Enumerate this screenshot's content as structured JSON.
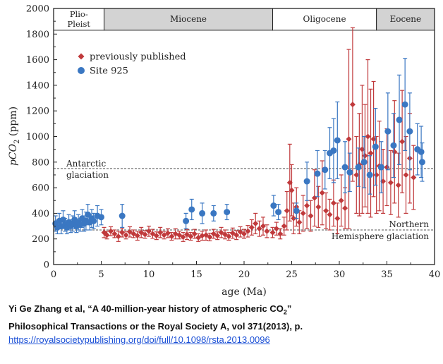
{
  "chart_data": {
    "type": "scatter",
    "xlabel": "age (Ma)",
    "ylabel_main": "pCO",
    "ylabel_sub": "2",
    "ylabel_tail": " (ppm)",
    "xlim": [
      0,
      40
    ],
    "ylim": [
      0,
      2000
    ],
    "xticks": [
      "0",
      "5",
      "10",
      "15",
      "20",
      "25",
      "30",
      "35",
      "40"
    ],
    "yticks": [
      "0",
      "200",
      "400",
      "600",
      "800",
      "1000",
      "1200",
      "1400",
      "1600",
      "1800",
      "2000"
    ],
    "epochs": [
      {
        "name": "Plio-\nPleist",
        "line1": "Plio-",
        "line2": "Pleist",
        "start": 0,
        "end": 5.3,
        "fill": "#ffffff"
      },
      {
        "name": "Miocene",
        "start": 5.3,
        "end": 23,
        "fill": "#d3d3d3"
      },
      {
        "name": "Oligocene",
        "start": 23,
        "end": 33.9,
        "fill": "#ffffff"
      },
      {
        "name": "Eocene",
        "start": 33.9,
        "end": 40,
        "fill": "#d3d3d3"
      }
    ],
    "reference_lines": [
      {
        "label_line1": "Antarctic",
        "label_line2": "glaciation",
        "y": 750
      },
      {
        "label_line1": "Northern",
        "label_line2": "Hemisphere glaciation",
        "y": 270
      }
    ],
    "legend": [
      {
        "label": "previously published",
        "marker": "diamond",
        "color": "#c0393b"
      },
      {
        "label": "Site 925",
        "marker": "circle",
        "color": "#3a77c2"
      }
    ],
    "series": [
      {
        "name": "previously published",
        "color": "#c0393b",
        "marker": "diamond",
        "points": [
          [
            5.3,
            250,
            40
          ],
          [
            5.6,
            230,
            30
          ],
          [
            6.0,
            260,
            35
          ],
          [
            6.4,
            240,
            30
          ],
          [
            6.8,
            220,
            40
          ],
          [
            7.2,
            250,
            35
          ],
          [
            7.6,
            230,
            30
          ],
          [
            8.0,
            255,
            40
          ],
          [
            8.4,
            240,
            30
          ],
          [
            8.8,
            225,
            35
          ],
          [
            9.2,
            250,
            40
          ],
          [
            9.6,
            235,
            30
          ],
          [
            10.0,
            260,
            40
          ],
          [
            10.4,
            240,
            35
          ],
          [
            10.8,
            225,
            30
          ],
          [
            11.2,
            250,
            40
          ],
          [
            11.6,
            230,
            30
          ],
          [
            12.0,
            245,
            35
          ],
          [
            12.4,
            220,
            30
          ],
          [
            12.8,
            240,
            40
          ],
          [
            13.2,
            230,
            30
          ],
          [
            13.6,
            215,
            35
          ],
          [
            14.0,
            235,
            40
          ],
          [
            14.4,
            220,
            30
          ],
          [
            14.8,
            240,
            35
          ],
          [
            15.2,
            210,
            30
          ],
          [
            15.6,
            225,
            35
          ],
          [
            16.0,
            230,
            40
          ],
          [
            16.4,
            215,
            30
          ],
          [
            16.8,
            240,
            35
          ],
          [
            17.2,
            225,
            30
          ],
          [
            17.6,
            250,
            40
          ],
          [
            18.0,
            235,
            35
          ],
          [
            18.4,
            220,
            30
          ],
          [
            18.8,
            245,
            40
          ],
          [
            19.2,
            230,
            35
          ],
          [
            19.6,
            255,
            40
          ],
          [
            20.0,
            240,
            35
          ],
          [
            20.4,
            260,
            45
          ],
          [
            20.8,
            290,
            60
          ],
          [
            21.2,
            320,
            80
          ],
          [
            21.6,
            280,
            60
          ],
          [
            22.0,
            300,
            70
          ],
          [
            22.4,
            260,
            50
          ],
          [
            23.0,
            250,
            40
          ],
          [
            23.4,
            280,
            50
          ],
          [
            23.8,
            240,
            40
          ],
          [
            24.2,
            300,
            70
          ],
          [
            24.5,
            420,
            150
          ],
          [
            24.8,
            640,
            300
          ],
          [
            25.0,
            580,
            200
          ],
          [
            25.2,
            360,
            120
          ],
          [
            25.5,
            450,
            150
          ],
          [
            25.8,
            330,
            90
          ],
          [
            26.2,
            400,
            140
          ],
          [
            26.6,
            460,
            180
          ],
          [
            27.0,
            380,
            120
          ],
          [
            27.4,
            520,
            220
          ],
          [
            27.8,
            450,
            160
          ],
          [
            28.2,
            560,
            250
          ],
          [
            28.6,
            420,
            140
          ],
          [
            29.0,
            390,
            120
          ],
          [
            29.4,
            480,
            180
          ],
          [
            29.8,
            360,
            120
          ],
          [
            30.2,
            500,
            200
          ],
          [
            30.6,
            440,
            160
          ],
          [
            31.0,
            980,
            700
          ],
          [
            31.4,
            1250,
            600
          ],
          [
            31.8,
            700,
            300
          ],
          [
            32.1,
            780,
            400
          ],
          [
            32.4,
            900,
            500
          ],
          [
            32.7,
            850,
            400
          ],
          [
            33.0,
            1000,
            600
          ],
          [
            33.3,
            870,
            500
          ],
          [
            33.6,
            980,
            450
          ],
          [
            33.9,
            700,
            300
          ],
          [
            34.2,
            770,
            350
          ],
          [
            34.6,
            650,
            250
          ],
          [
            35.0,
            760,
            300
          ],
          [
            35.4,
            640,
            250
          ],
          [
            35.8,
            880,
            400
          ],
          [
            36.2,
            620,
            250
          ],
          [
            36.6,
            960,
            400
          ],
          [
            37.0,
            700,
            300
          ],
          [
            37.4,
            830,
            350
          ],
          [
            37.8,
            680,
            250
          ]
        ]
      },
      {
        "name": "Site 925",
        "color": "#3a77c2",
        "marker": "circle",
        "points": [
          [
            0.2,
            320,
            60
          ],
          [
            0.4,
            290,
            50
          ],
          [
            0.6,
            340,
            60
          ],
          [
            0.8,
            300,
            60
          ],
          [
            1.0,
            350,
            70
          ],
          [
            1.2,
            310,
            50
          ],
          [
            1.4,
            290,
            50
          ],
          [
            1.6,
            330,
            60
          ],
          [
            1.8,
            300,
            50
          ],
          [
            2.0,
            320,
            60
          ],
          [
            2.2,
            350,
            70
          ],
          [
            2.4,
            300,
            50
          ],
          [
            2.6,
            330,
            60
          ],
          [
            2.8,
            310,
            50
          ],
          [
            3.0,
            360,
            70
          ],
          [
            3.2,
            320,
            60
          ],
          [
            3.4,
            340,
            70
          ],
          [
            3.6,
            390,
            80
          ],
          [
            3.8,
            330,
            60
          ],
          [
            4.0,
            360,
            70
          ],
          [
            4.2,
            340,
            60
          ],
          [
            4.6,
            380,
            80
          ],
          [
            5.0,
            370,
            60
          ],
          [
            7.2,
            380,
            90
          ],
          [
            13.9,
            340,
            60
          ],
          [
            14.5,
            430,
            80
          ],
          [
            15.6,
            400,
            80
          ],
          [
            16.8,
            400,
            60
          ],
          [
            18.2,
            410,
            60
          ],
          [
            23.1,
            460,
            80
          ],
          [
            23.6,
            410,
            60
          ],
          [
            25.5,
            420,
            60
          ],
          [
            26.6,
            650,
            150
          ],
          [
            27.7,
            710,
            180
          ],
          [
            28.5,
            740,
            150
          ],
          [
            29.0,
            870,
            200
          ],
          [
            29.4,
            890,
            250
          ],
          [
            29.8,
            970,
            300
          ],
          [
            30.6,
            760,
            200
          ],
          [
            31.1,
            720,
            150
          ],
          [
            32.0,
            760,
            150
          ],
          [
            32.6,
            800,
            200
          ],
          [
            33.2,
            700,
            150
          ],
          [
            33.8,
            920,
            300
          ],
          [
            34.4,
            760,
            200
          ],
          [
            35.1,
            1040,
            300
          ],
          [
            35.7,
            930,
            250
          ],
          [
            36.3,
            1130,
            350
          ],
          [
            36.9,
            1250,
            360
          ],
          [
            37.4,
            1040,
            300
          ],
          [
            38.2,
            900,
            200
          ],
          [
            38.6,
            880,
            200
          ],
          [
            38.7,
            800,
            150
          ]
        ]
      }
    ]
  },
  "caption": {
    "line1_prefix": "Yi Ge Zhang et al, “A 40-million-year history of atmospheric CO",
    "line1_sub": "2",
    "line1_suffix": "”",
    "line2": "Philosophical Transactions or the Royal Society A, vol  371(2013), p.",
    "link": "https://royalsocietypublishing.org/doi/full/10.1098/rsta.2013.0096"
  }
}
